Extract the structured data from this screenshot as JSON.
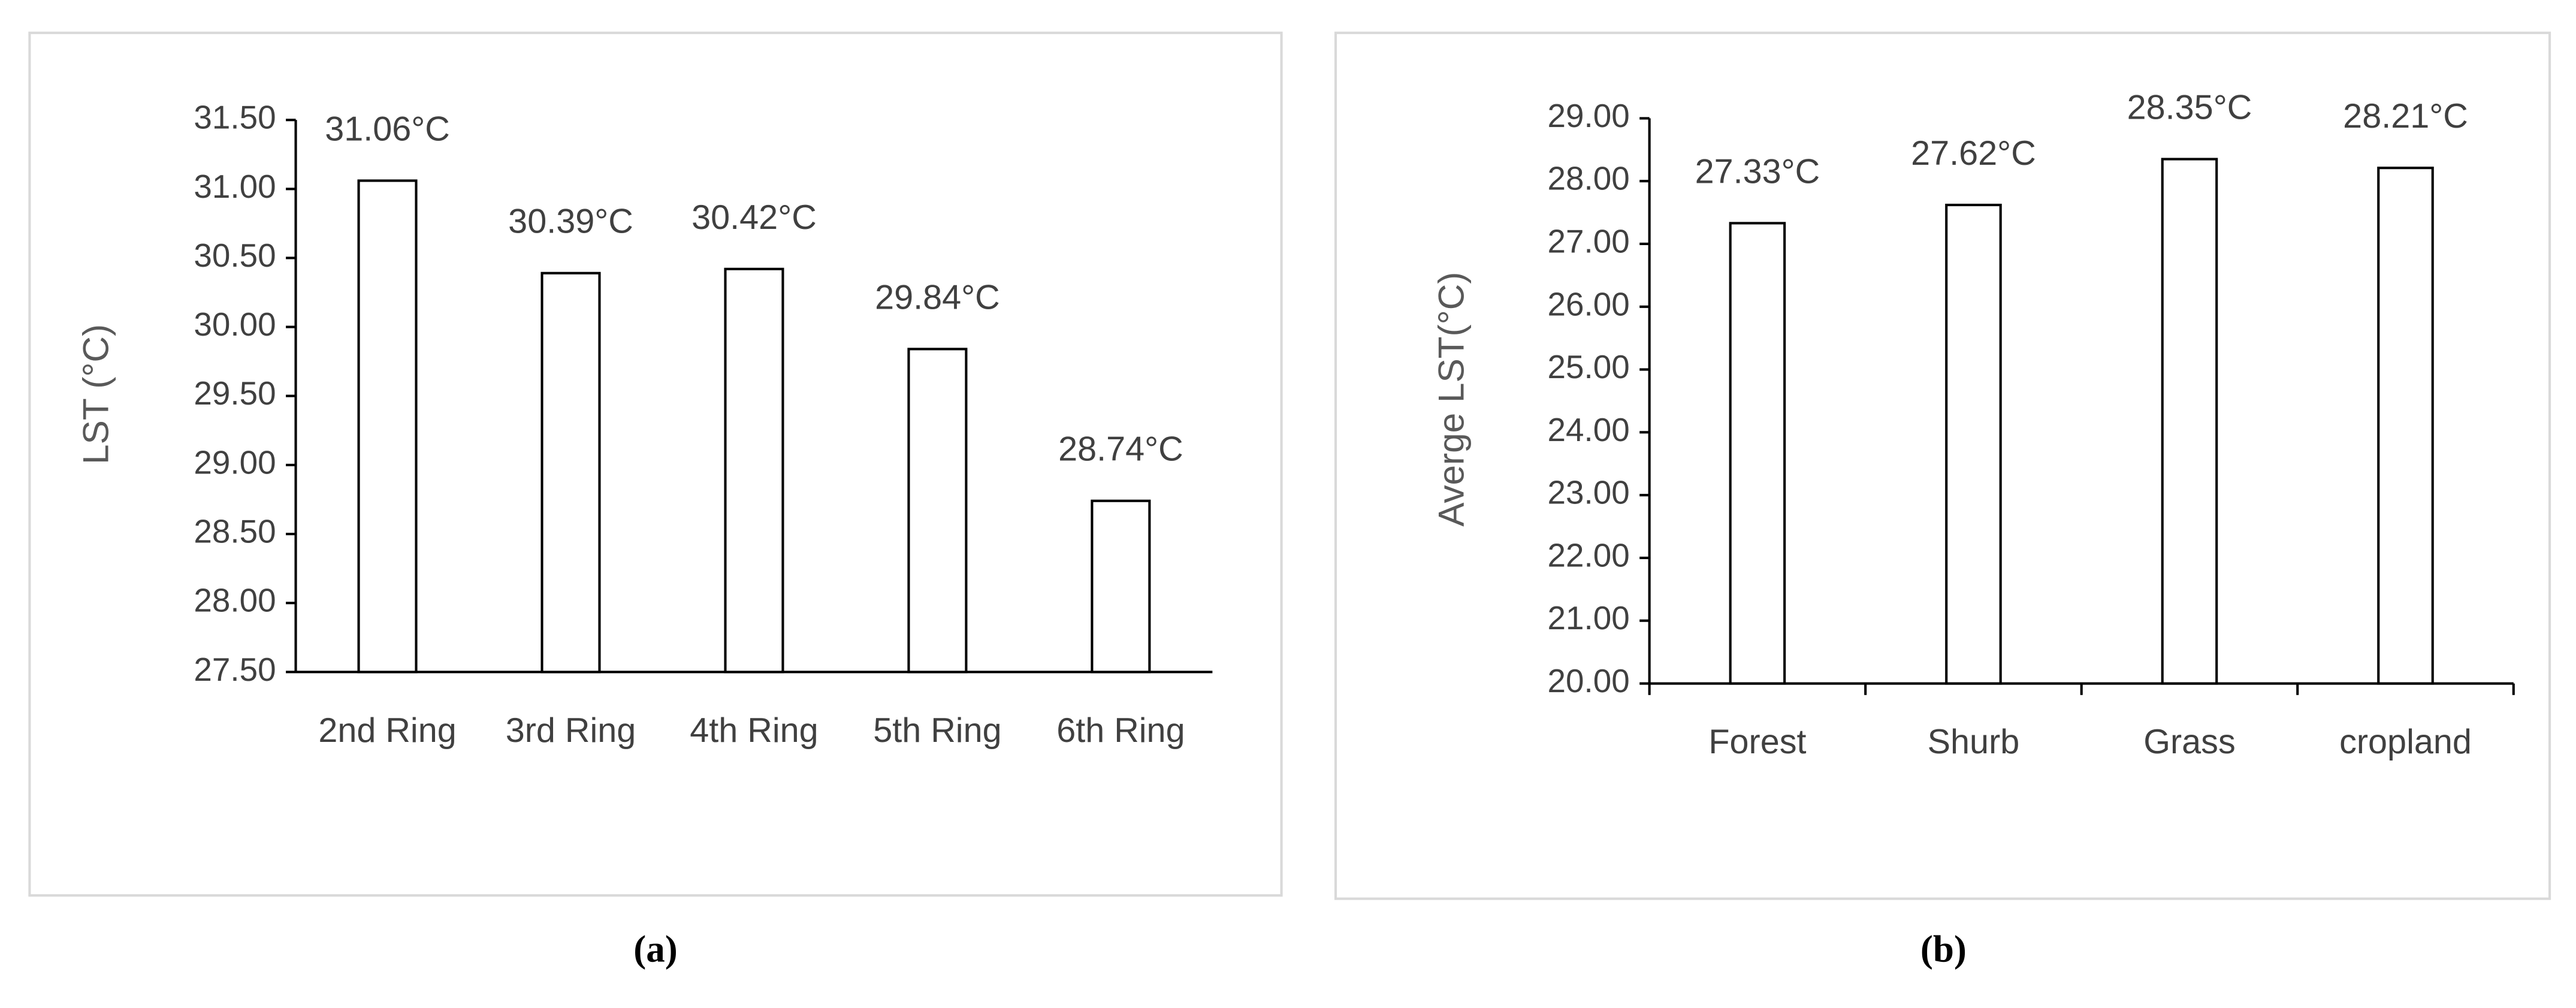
{
  "chart_data": [
    {
      "type": "bar",
      "caption": "(a)",
      "y_label": "LST (°C)",
      "categories": [
        "2nd Ring",
        "3rd Ring",
        "4th Ring",
        "5th Ring",
        "6th Ring"
      ],
      "values": [
        31.06,
        30.39,
        30.42,
        29.84,
        28.74
      ],
      "value_labels": [
        "31.06°C",
        "30.39°C",
        "30.42°C",
        "29.84°C",
        "28.74°C"
      ],
      "color": "#ffffff",
      "ylim": [
        27.5,
        31.5
      ],
      "yticks": [
        {
          "value": 27.5,
          "label": "27.50"
        },
        {
          "value": 28,
          "label": "28.00"
        },
        {
          "value": 28.5,
          "label": "28.50"
        },
        {
          "value": 29,
          "label": "29.00"
        },
        {
          "value": 29.5,
          "label": "29.50"
        },
        {
          "value": 30,
          "label": "30.00"
        },
        {
          "value": 30.5,
          "label": "30.50"
        },
        {
          "value": 31,
          "label": "31.00"
        },
        {
          "value": 31.5,
          "label": "31.50"
        }
      ],
      "grid": false,
      "x_tick_marks": false
    },
    {
      "type": "bar",
      "caption": "(b)",
      "y_label": "Averge LST(°C)",
      "categories": [
        "Forest",
        "Shurb",
        "Grass",
        "cropland"
      ],
      "values": [
        27.33,
        27.62,
        28.35,
        28.21
      ],
      "value_labels": [
        "27.33°C",
        "27.62°C",
        "28.35°C",
        "28.21°C"
      ],
      "color": "#ffffff",
      "ylim": [
        20,
        29
      ],
      "yticks": [
        {
          "value": 20,
          "label": "20.00"
        },
        {
          "value": 21,
          "label": "21.00"
        },
        {
          "value": 22,
          "label": "22.00"
        },
        {
          "value": 23,
          "label": "23.00"
        },
        {
          "value": 24,
          "label": "24.00"
        },
        {
          "value": 25,
          "label": "25.00"
        },
        {
          "value": 26,
          "label": "26.00"
        },
        {
          "value": 27,
          "label": "27.00"
        },
        {
          "value": 28,
          "label": "28.00"
        },
        {
          "value": 29,
          "label": "29.00"
        }
      ],
      "grid": false,
      "x_tick_marks": true
    }
  ]
}
